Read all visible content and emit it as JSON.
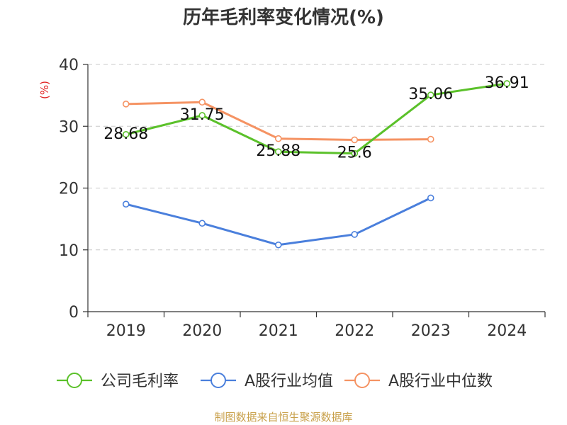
{
  "chart_data": {
    "type": "line",
    "title": "历年毛利率变化情况(%)",
    "ylabel": "(%)",
    "xlabel": "",
    "categories": [
      "2019",
      "2020",
      "2021",
      "2022",
      "2023",
      "2024"
    ],
    "ylim": [
      0,
      40
    ],
    "yticks": [
      0,
      10,
      20,
      30,
      40
    ],
    "grid": true,
    "legend_position": "bottom",
    "series": [
      {
        "name": "公司毛利率",
        "color": "#5bc12a",
        "values": [
          28.68,
          31.75,
          25.88,
          25.6,
          35.06,
          36.91
        ],
        "data_labels": [
          "28.68",
          "31.75",
          "25.88",
          "25.6",
          "35.06",
          "36.91"
        ]
      },
      {
        "name": "A股行业均值",
        "color": "#4a7fdc",
        "values": [
          17.4,
          14.3,
          10.8,
          12.5,
          18.4,
          null
        ]
      },
      {
        "name": "A股行业中位数",
        "color": "#f59363",
        "values": [
          33.6,
          33.9,
          28.0,
          27.8,
          27.9,
          null
        ]
      }
    ]
  },
  "source_note": "制图数据来自恒生聚源数据库"
}
